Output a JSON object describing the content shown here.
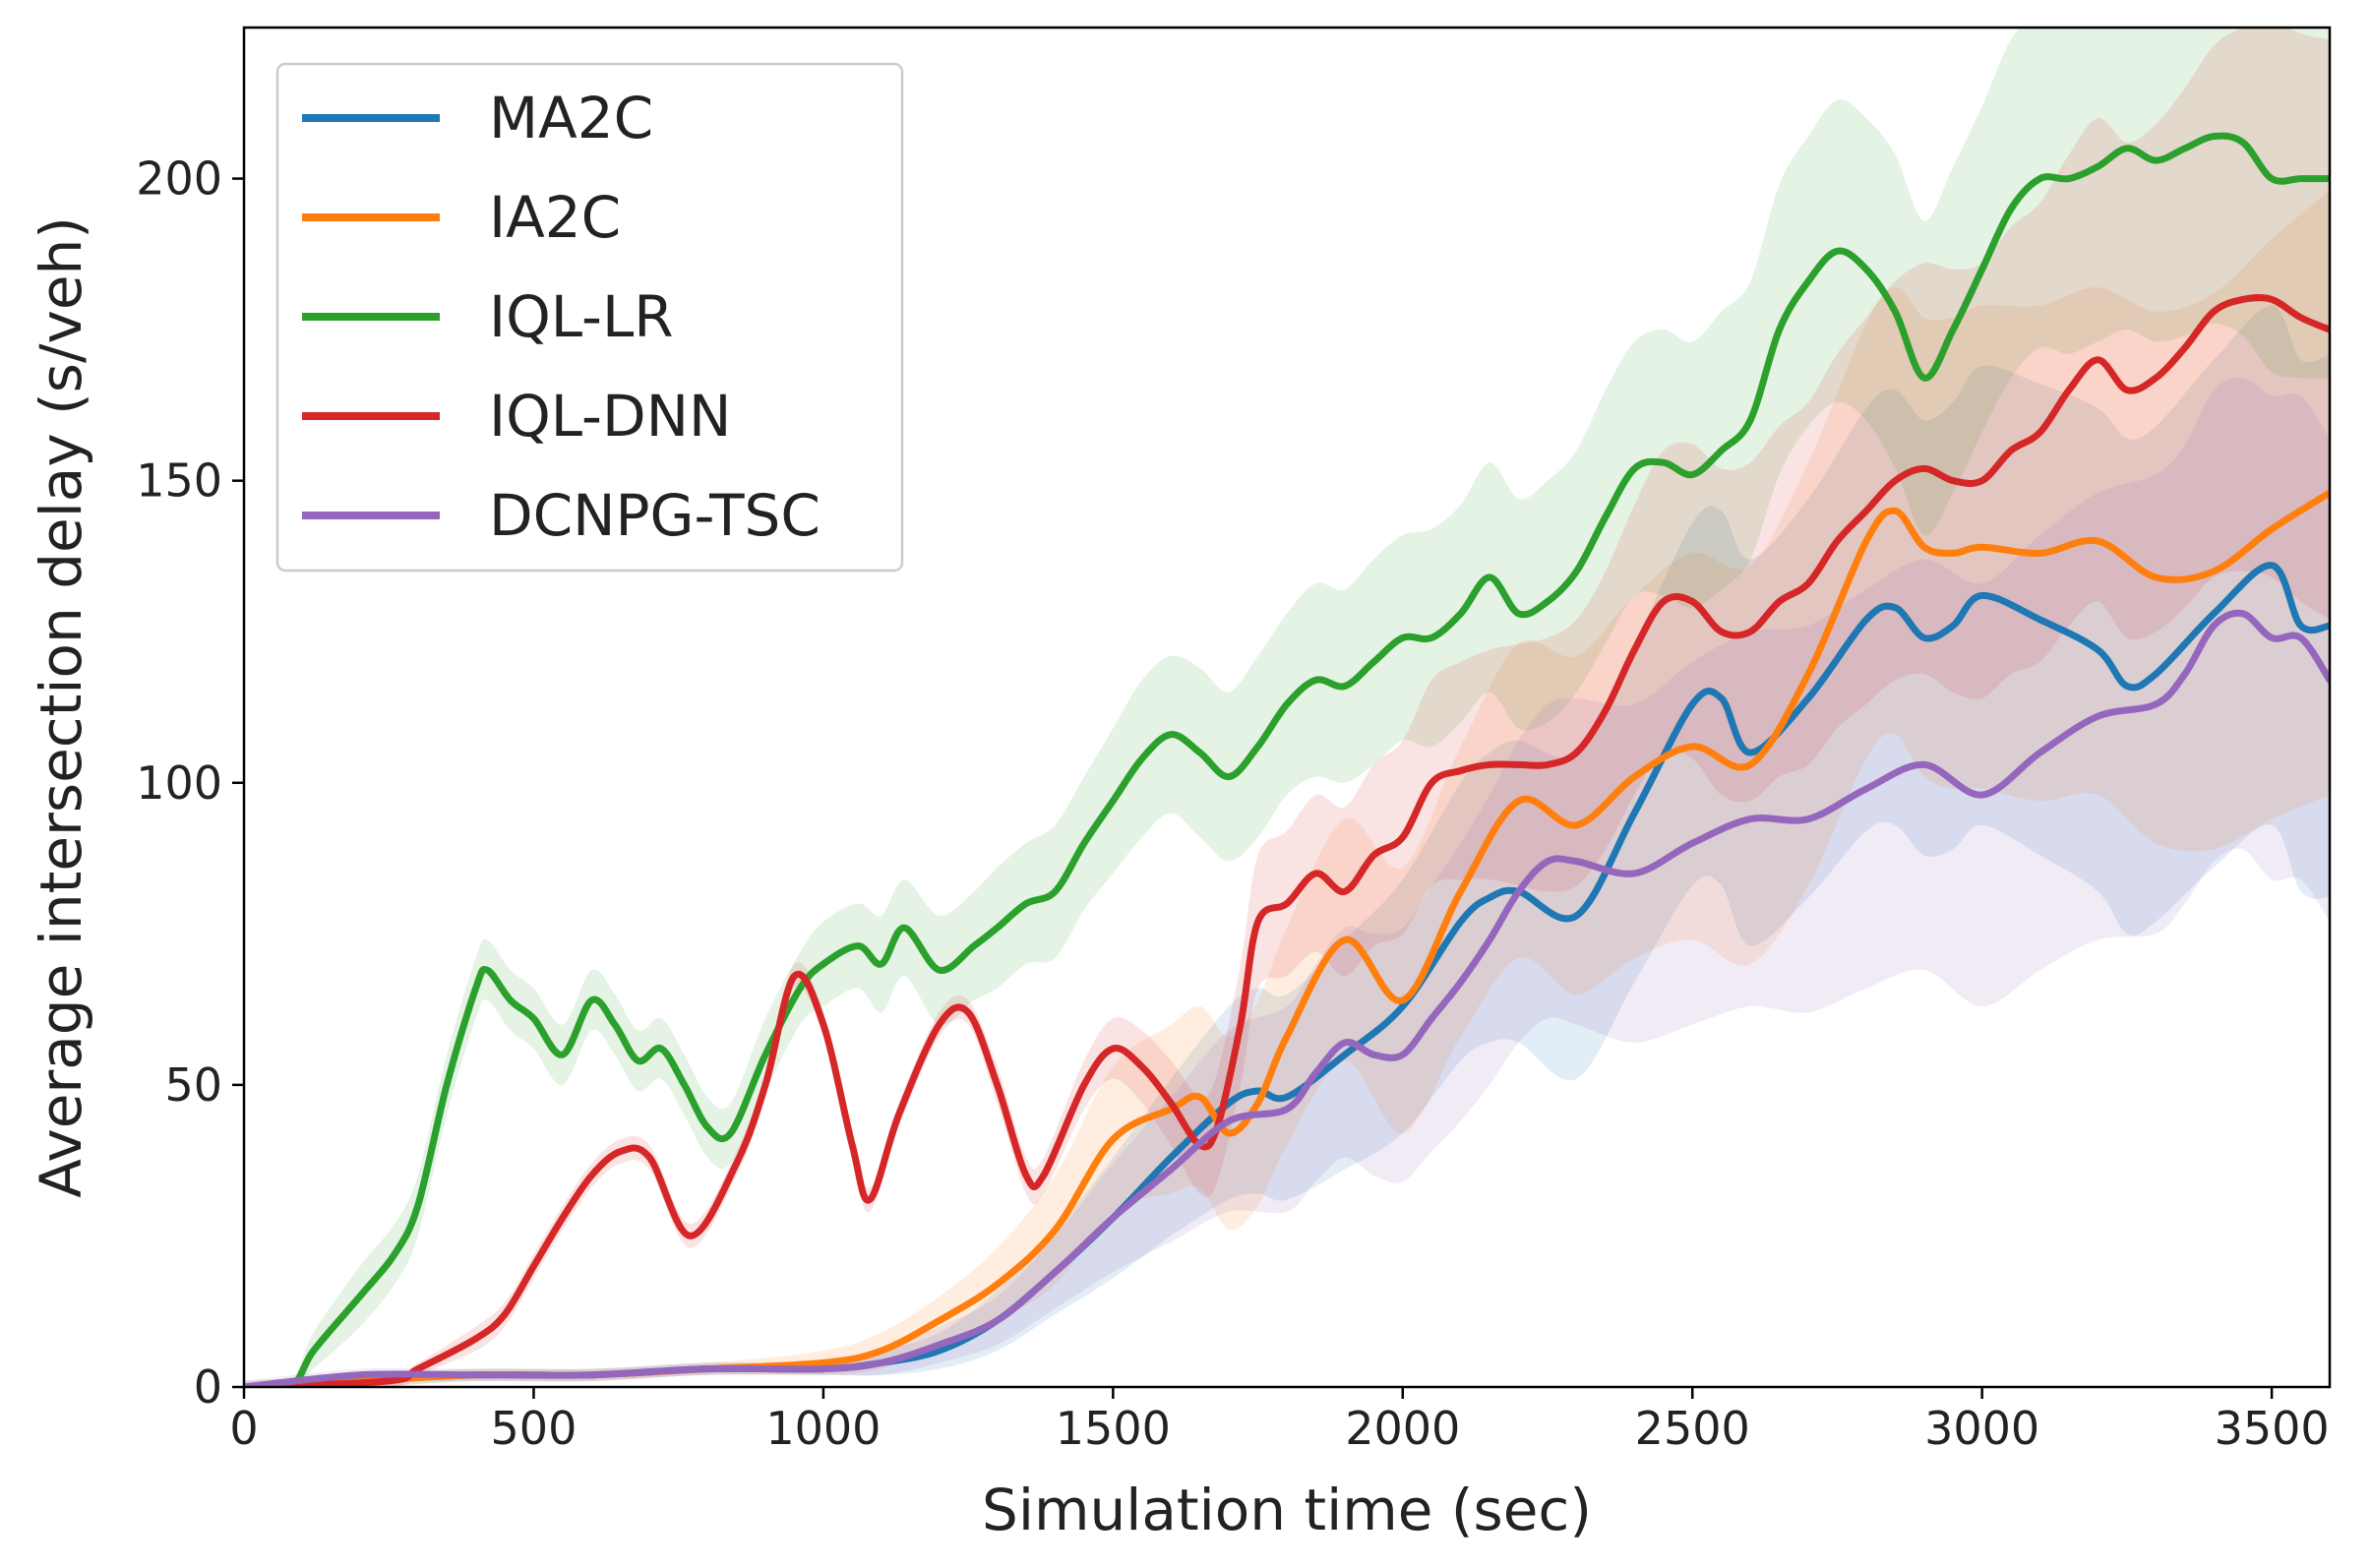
{
  "chart_data": {
    "type": "line",
    "title": "",
    "xlabel": "Simulation time (sec)",
    "ylabel": "Average intersection delay (s/veh)",
    "xlim": [
      0,
      3600
    ],
    "ylim": [
      0,
      225
    ],
    "xticks": [
      0,
      500,
      1000,
      1500,
      2000,
      2500,
      3000,
      3500
    ],
    "yticks": [
      0,
      50,
      100,
      150,
      200
    ],
    "grid": false,
    "legend_position": "top-left",
    "series": [
      {
        "name": "MA2C",
        "color": "#1f77b4",
        "x": [
          0,
          200,
          400,
          600,
          800,
          1000,
          1100,
          1200,
          1300,
          1400,
          1500,
          1600,
          1700,
          1750,
          1800,
          1900,
          2000,
          2100,
          2150,
          2200,
          2300,
          2400,
          2500,
          2550,
          2600,
          2700,
          2800,
          2850,
          2900,
          2950,
          3000,
          3100,
          3200,
          3250,
          3300,
          3400,
          3500,
          3550,
          3600
        ],
        "y": [
          0,
          1,
          2,
          2,
          3,
          3,
          4,
          6,
          11,
          19,
          28,
          38,
          47,
          49,
          48,
          55,
          63,
          77,
          81,
          82,
          78,
          95,
          113,
          114,
          105,
          114,
          127,
          129,
          124,
          126,
          131,
          127,
          122,
          116,
          118,
          128,
          136,
          126,
          126
        ],
        "band": [
          1,
          1,
          1,
          1,
          1,
          1,
          2,
          3,
          5,
          7,
          10,
          13,
          16,
          17,
          17,
          19,
          21,
          23,
          24,
          25,
          27,
          28,
          30,
          31,
          32,
          33,
          35,
          36,
          36,
          37,
          38,
          39,
          40,
          41,
          41,
          42,
          43,
          44,
          45
        ]
      },
      {
        "name": "IA2C",
        "color": "#ff7f0e",
        "x": [
          0,
          200,
          400,
          600,
          800,
          1000,
          1100,
          1200,
          1300,
          1400,
          1500,
          1600,
          1650,
          1700,
          1750,
          1800,
          1900,
          2000,
          2100,
          2200,
          2300,
          2400,
          2500,
          2600,
          2700,
          2800,
          2850,
          2900,
          2950,
          3000,
          3100,
          3200,
          3300,
          3400,
          3500,
          3600
        ],
        "y": [
          0,
          1,
          2,
          2,
          3,
          4,
          6,
          11,
          17,
          26,
          41,
          46,
          48,
          42,
          47,
          58,
          74,
          64,
          82,
          97,
          93,
          101,
          106,
          103,
          118,
          140,
          145,
          139,
          138,
          139,
          138,
          140,
          134,
          135,
          142,
          148
        ],
        "band": [
          1,
          1,
          1,
          1,
          1,
          2,
          3,
          4,
          6,
          9,
          12,
          14,
          15,
          16,
          17,
          18,
          20,
          22,
          24,
          26,
          28,
          30,
          32,
          33,
          35,
          36,
          37,
          38,
          39,
          40,
          41,
          42,
          44,
          46,
          48,
          50
        ]
      },
      {
        "name": "IQL-LR",
        "color": "#2ca02c",
        "x": [
          0,
          80,
          120,
          200,
          260,
          300,
          350,
          400,
          420,
          460,
          500,
          550,
          600,
          640,
          680,
          720,
          760,
          800,
          840,
          900,
          960,
          1000,
          1060,
          1100,
          1140,
          1200,
          1260,
          1300,
          1350,
          1400,
          1450,
          1500,
          1550,
          1600,
          1650,
          1700,
          1750,
          1800,
          1850,
          1900,
          1950,
          2000,
          2050,
          2100,
          2150,
          2200,
          2250,
          2300,
          2350,
          2400,
          2450,
          2500,
          2550,
          2600,
          2650,
          2700,
          2750,
          2800,
          2850,
          2900,
          2950,
          3000,
          3050,
          3100,
          3150,
          3200,
          3250,
          3300,
          3350,
          3400,
          3450,
          3500,
          3550,
          3600
        ],
        "y": [
          0,
          0,
          6,
          15,
          22,
          30,
          50,
          66,
          69,
          64,
          61,
          55,
          64,
          60,
          54,
          56,
          50,
          43,
          42,
          55,
          66,
          70,
          73,
          70,
          76,
          69,
          73,
          76,
          80,
          82,
          90,
          97,
          104,
          108,
          105,
          101,
          106,
          113,
          117,
          116,
          120,
          124,
          124,
          128,
          134,
          128,
          130,
          135,
          144,
          152,
          153,
          151,
          155,
          160,
          175,
          183,
          188,
          185,
          178,
          167,
          175,
          185,
          195,
          200,
          200,
          202,
          205,
          203,
          205,
          207,
          206,
          200,
          200,
          200
        ],
        "band": [
          0,
          1,
          3,
          5,
          5,
          5,
          5,
          5,
          5,
          5,
          5,
          5,
          5,
          5,
          5,
          5,
          5,
          5,
          5,
          6,
          6,
          7,
          7,
          8,
          8,
          9,
          9,
          10,
          10,
          11,
          11,
          12,
          13,
          13,
          14,
          14,
          15,
          15,
          16,
          16,
          17,
          17,
          18,
          18,
          19,
          19,
          20,
          20,
          21,
          21,
          22,
          22,
          23,
          23,
          24,
          24,
          25,
          25,
          26,
          26,
          27,
          27,
          28,
          28,
          29,
          29,
          30,
          30,
          31,
          31,
          32,
          32,
          33,
          33
        ]
      },
      {
        "name": "IQL-DNN",
        "color": "#d62728",
        "x": [
          0,
          250,
          300,
          400,
          450,
          500,
          550,
          600,
          650,
          700,
          770,
          850,
          900,
          950,
          1000,
          1050,
          1080,
          1130,
          1200,
          1250,
          1300,
          1350,
          1380,
          1450,
          1500,
          1550,
          1600,
          1650,
          1680,
          1720,
          1750,
          1800,
          1850,
          1900,
          1950,
          2000,
          2050,
          2100,
          2150,
          2200,
          2250,
          2300,
          2350,
          2400,
          2450,
          2500,
          2550,
          2600,
          2650,
          2700,
          2750,
          2800,
          2850,
          2900,
          2950,
          3000,
          3050,
          3100,
          3150,
          3200,
          3250,
          3300,
          3350,
          3400,
          3450,
          3500,
          3550,
          3600
        ],
        "y": [
          0,
          1,
          3,
          8,
          12,
          20,
          28,
          35,
          39,
          38,
          25,
          37,
          50,
          68,
          60,
          40,
          31,
          45,
          60,
          62,
          50,
          35,
          35,
          50,
          56,
          53,
          47,
          40,
          43,
          60,
          77,
          80,
          85,
          82,
          88,
          91,
          100,
          102,
          103,
          103,
          103,
          105,
          112,
          122,
          130,
          130,
          125,
          125,
          130,
          133,
          140,
          145,
          150,
          152,
          150,
          150,
          155,
          158,
          165,
          170,
          165,
          167,
          172,
          178,
          180,
          180,
          177,
          175
        ],
        "band": [
          0,
          1,
          1,
          2,
          2,
          2,
          2,
          2,
          2,
          2,
          2,
          2,
          2,
          2,
          2,
          2,
          2,
          2,
          2,
          2,
          3,
          3,
          3,
          4,
          5,
          6,
          7,
          8,
          9,
          10,
          11,
          12,
          13,
          14,
          15,
          16,
          17,
          18,
          19,
          20,
          21,
          22,
          23,
          24,
          25,
          26,
          27,
          28,
          29,
          30,
          31,
          32,
          33,
          34,
          35,
          36,
          37,
          38,
          39,
          40,
          41,
          42,
          43,
          44,
          45,
          46,
          47,
          48
        ]
      },
      {
        "name": "DCNPG-TSC",
        "color": "#9467bd",
        "x": [
          0,
          200,
          400,
          600,
          800,
          1000,
          1100,
          1200,
          1300,
          1400,
          1500,
          1600,
          1700,
          1800,
          1850,
          1900,
          1950,
          2000,
          2050,
          2100,
          2150,
          2200,
          2250,
          2300,
          2400,
          2500,
          2600,
          2700,
          2800,
          2900,
          3000,
          3100,
          3200,
          3300,
          3350,
          3400,
          3450,
          3500,
          3550,
          3600
        ],
        "y": [
          0,
          2,
          2,
          2,
          3,
          3,
          4,
          7,
          11,
          19,
          28,
          36,
          44,
          46,
          52,
          57,
          55,
          55,
          61,
          67,
          74,
          82,
          87,
          87,
          85,
          90,
          94,
          94,
          99,
          103,
          98,
          105,
          111,
          113,
          118,
          126,
          128,
          124,
          124,
          117
        ],
        "band": [
          1,
          1,
          1,
          1,
          1,
          1,
          2,
          3,
          4,
          6,
          9,
          12,
          15,
          17,
          18,
          19,
          20,
          21,
          22,
          23,
          24,
          25,
          26,
          27,
          28,
          30,
          31,
          32,
          33,
          34,
          35,
          36,
          37,
          38,
          38,
          39,
          39,
          40,
          40,
          40
        ]
      }
    ]
  }
}
